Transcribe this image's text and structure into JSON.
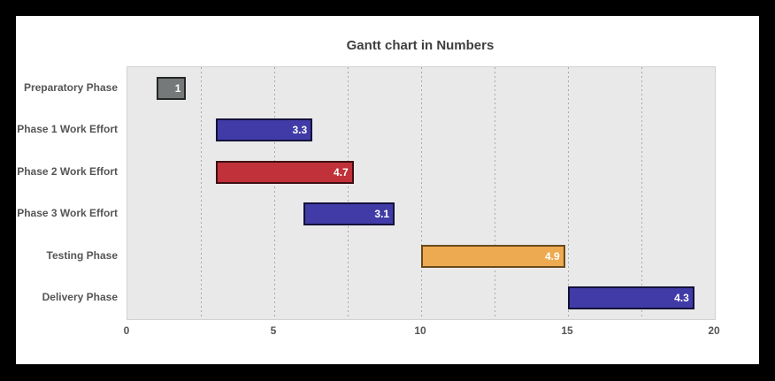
{
  "frame": {
    "background": "#000000",
    "panel_background": "#ffffff"
  },
  "chart_data": {
    "type": "bar",
    "orientation": "horizontal",
    "title": "Gantt chart in Numbers",
    "categories": [
      "Preparatory Phase",
      "Phase 1 Work Effort",
      "Phase 2 Work Effort",
      "Phase 3 Work Effort",
      "Testing Phase",
      "Delivery Phase"
    ],
    "series": [
      {
        "name": "Preparatory Phase",
        "start": 1,
        "duration": 1,
        "label": "1",
        "color": "#75797a",
        "border_color": "#252727"
      },
      {
        "name": "Phase 1 Work Effort",
        "start": 3,
        "duration": 3.3,
        "label": "3.3",
        "color": "#413ba7",
        "border_color": "#13113a"
      },
      {
        "name": "Phase 2 Work Effort",
        "start": 3,
        "duration": 4.7,
        "label": "4.7",
        "color": "#c03139",
        "border_color": "#400f13"
      },
      {
        "name": "Phase 3 Work Effort",
        "start": 6,
        "duration": 3.1,
        "label": "3.1",
        "color": "#413ba7",
        "border_color": "#13113a"
      },
      {
        "name": "Testing Phase",
        "start": 10,
        "duration": 4.9,
        "label": "4.9",
        "color": "#edaa51",
        "border_color": "#6b4a1c"
      },
      {
        "name": "Delivery Phase",
        "start": 15,
        "duration": 4.3,
        "label": "4.3",
        "color": "#413ba7",
        "border_color": "#13113a"
      }
    ],
    "xlim": [
      0,
      20
    ],
    "xticks": [
      "0",
      "5",
      "10",
      "15",
      "20"
    ],
    "xtick_values": [
      0,
      5,
      10,
      15,
      20
    ],
    "gridlines": [
      2.5,
      5,
      7.5,
      10,
      12.5,
      15,
      17.5
    ],
    "grid_style": "dashed",
    "plot_background": "#e9e9e9",
    "axis_label_color": "#555555",
    "title_color": "#3f3f3f",
    "value_label_color": "#ffffff"
  }
}
